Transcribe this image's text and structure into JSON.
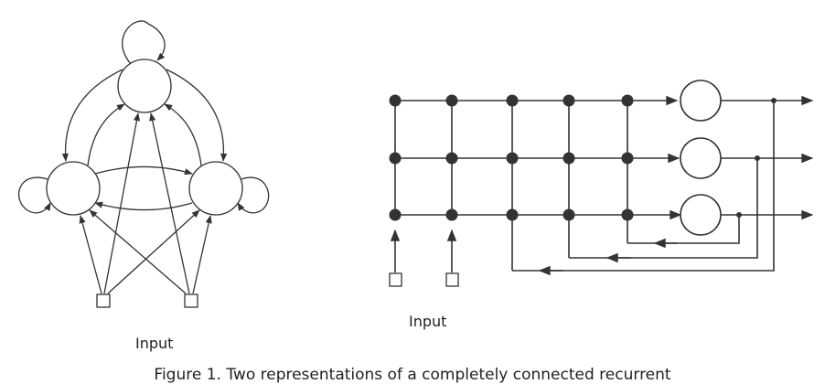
{
  "figure": {
    "left_input_label": "Input",
    "right_input_label": "Input",
    "caption": "Figure 1. Two representations of a completely connected recurrent",
    "colors": {
      "ink": "#333333",
      "background": "#ffffff"
    }
  }
}
